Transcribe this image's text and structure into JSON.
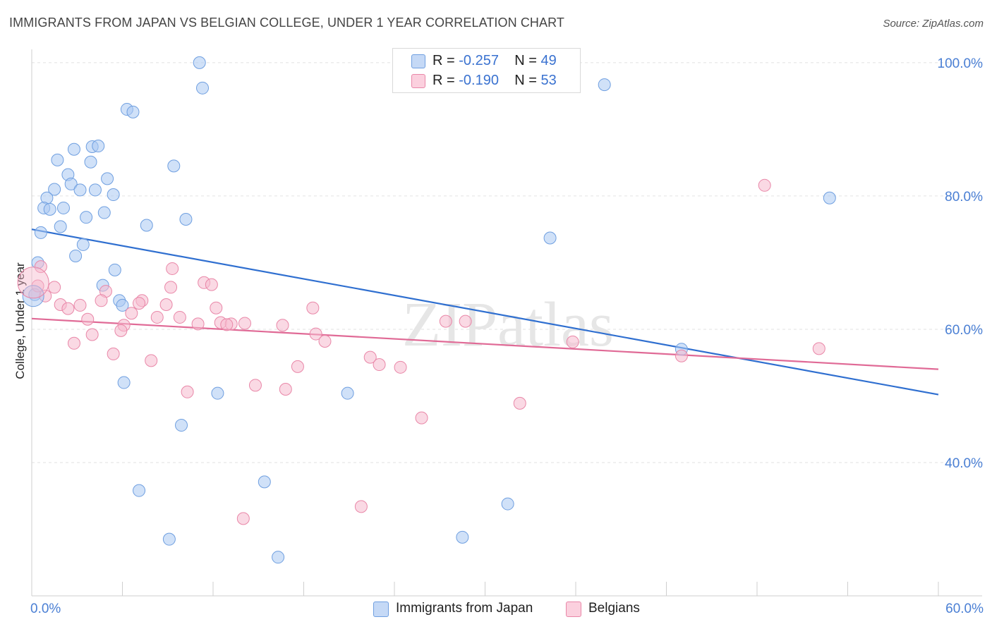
{
  "header": {
    "title": "IMMIGRANTS FROM JAPAN VS BELGIAN COLLEGE, UNDER 1 YEAR CORRELATION CHART",
    "source": "Source: ZipAtlas.com"
  },
  "watermark": "ZIPatlas",
  "legend": {
    "rows": [
      {
        "r_label": "R = ",
        "r_value": "-0.257",
        "n_label": "N = ",
        "n_value": "49",
        "color": "#a9c8f2"
      },
      {
        "r_label": "R = ",
        "r_value": "-0.190",
        "n_label": "N = ",
        "n_value": "53",
        "color": "#f6b9cd"
      }
    ]
  },
  "chart_data": {
    "type": "scatter",
    "title": "IMMIGRANTS FROM JAPAN VS BELGIAN COLLEGE, UNDER 1 YEAR CORRELATION CHART",
    "xlabel": "",
    "ylabel": "College, Under 1 year",
    "xlim": [
      0,
      60
    ],
    "ylim": [
      20,
      102
    ],
    "x_ticks": [
      "0.0%",
      "60.0%"
    ],
    "y_ticks": [
      {
        "value": 40,
        "label": "40.0%"
      },
      {
        "value": 60,
        "label": "60.0%"
      },
      {
        "value": 80,
        "label": "80.0%"
      },
      {
        "value": 100,
        "label": "100.0%"
      }
    ],
    "grid": true,
    "legend_position": "top-center",
    "series": [
      {
        "name": "Immigrants from Japan",
        "color": "#a9c8f2",
        "stroke": "#6f9fe0",
        "line_color": "#2f6fd0",
        "trend": {
          "x0": 0,
          "y0": 75.0,
          "x1": 60,
          "y1": 50.2
        },
        "points": [
          [
            11.1,
            100.0
          ],
          [
            11.3,
            96.2
          ],
          [
            37.9,
            96.7
          ],
          [
            6.3,
            93.0
          ],
          [
            6.7,
            92.6
          ],
          [
            1.7,
            85.4
          ],
          [
            2.8,
            87.0
          ],
          [
            4.0,
            87.4
          ],
          [
            4.4,
            87.5
          ],
          [
            3.9,
            85.1
          ],
          [
            9.4,
            84.5
          ],
          [
            2.4,
            83.2
          ],
          [
            2.6,
            81.8
          ],
          [
            5.0,
            82.6
          ],
          [
            1.5,
            81.0
          ],
          [
            3.2,
            80.9
          ],
          [
            4.2,
            80.9
          ],
          [
            5.4,
            80.2
          ],
          [
            1.0,
            79.7
          ],
          [
            0.8,
            78.2
          ],
          [
            2.1,
            78.2
          ],
          [
            1.2,
            78.0
          ],
          [
            4.8,
            77.5
          ],
          [
            3.6,
            76.8
          ],
          [
            10.2,
            76.5
          ],
          [
            7.6,
            75.6
          ],
          [
            1.9,
            75.4
          ],
          [
            0.6,
            74.5
          ],
          [
            34.3,
            73.7
          ],
          [
            52.8,
            79.7
          ],
          [
            3.4,
            72.7
          ],
          [
            2.9,
            71.0
          ],
          [
            0.4,
            70.0
          ],
          [
            5.5,
            68.9
          ],
          [
            4.7,
            66.6
          ],
          [
            5.8,
            64.3
          ],
          [
            6.0,
            63.6
          ],
          [
            0.2,
            65.2
          ],
          [
            43.0,
            57.0
          ],
          [
            6.1,
            52.0
          ],
          [
            12.3,
            50.4
          ],
          [
            20.9,
            50.4
          ],
          [
            9.9,
            45.6
          ],
          [
            7.1,
            35.8
          ],
          [
            15.4,
            37.1
          ],
          [
            31.5,
            33.8
          ],
          [
            9.1,
            28.5
          ],
          [
            28.5,
            28.8
          ],
          [
            16.3,
            25.8
          ]
        ]
      },
      {
        "name": "Belgians",
        "color": "#f6b9cd",
        "stroke": "#e987a8",
        "line_color": "#e06a96",
        "trend": {
          "x0": 0,
          "y0": 61.6,
          "x1": 60,
          "y1": 54.0
        },
        "points": [
          [
            48.5,
            81.6
          ],
          [
            9.3,
            69.1
          ],
          [
            11.4,
            67.0
          ],
          [
            11.9,
            66.7
          ],
          [
            0.6,
            69.4
          ],
          [
            1.5,
            66.3
          ],
          [
            0.4,
            66.5
          ],
          [
            4.9,
            65.7
          ],
          [
            0.9,
            65.0
          ],
          [
            9.2,
            66.3
          ],
          [
            4.6,
            64.3
          ],
          [
            7.3,
            64.3
          ],
          [
            1.9,
            63.7
          ],
          [
            3.2,
            63.6
          ],
          [
            7.1,
            63.9
          ],
          [
            8.9,
            63.7
          ],
          [
            12.2,
            63.2
          ],
          [
            18.6,
            63.2
          ],
          [
            2.4,
            63.1
          ],
          [
            6.6,
            62.4
          ],
          [
            3.7,
            61.5
          ],
          [
            8.3,
            61.8
          ],
          [
            9.8,
            61.8
          ],
          [
            12.5,
            61.0
          ],
          [
            13.2,
            60.8
          ],
          [
            14.1,
            60.9
          ],
          [
            27.4,
            61.2
          ],
          [
            28.7,
            61.2
          ],
          [
            11.0,
            60.8
          ],
          [
            6.1,
            60.6
          ],
          [
            16.6,
            60.6
          ],
          [
            12.9,
            60.7
          ],
          [
            5.9,
            59.8
          ],
          [
            4.0,
            59.2
          ],
          [
            18.8,
            59.3
          ],
          [
            19.4,
            58.2
          ],
          [
            2.8,
            57.9
          ],
          [
            35.8,
            58.1
          ],
          [
            52.1,
            57.1
          ],
          [
            5.4,
            56.3
          ],
          [
            22.4,
            55.8
          ],
          [
            43.0,
            56.0
          ],
          [
            7.9,
            55.3
          ],
          [
            23.0,
            54.7
          ],
          [
            24.4,
            54.3
          ],
          [
            17.6,
            54.4
          ],
          [
            14.8,
            51.6
          ],
          [
            16.8,
            51.0
          ],
          [
            10.3,
            50.6
          ],
          [
            32.3,
            48.9
          ],
          [
            25.8,
            46.7
          ],
          [
            21.8,
            33.4
          ],
          [
            14.0,
            31.6
          ]
        ]
      }
    ]
  },
  "bottom_legend": {
    "items": [
      {
        "label": "Immigrants from Japan",
        "color": "#a9c8f2"
      },
      {
        "label": "Belgians",
        "color": "#f6b9cd"
      }
    ]
  }
}
